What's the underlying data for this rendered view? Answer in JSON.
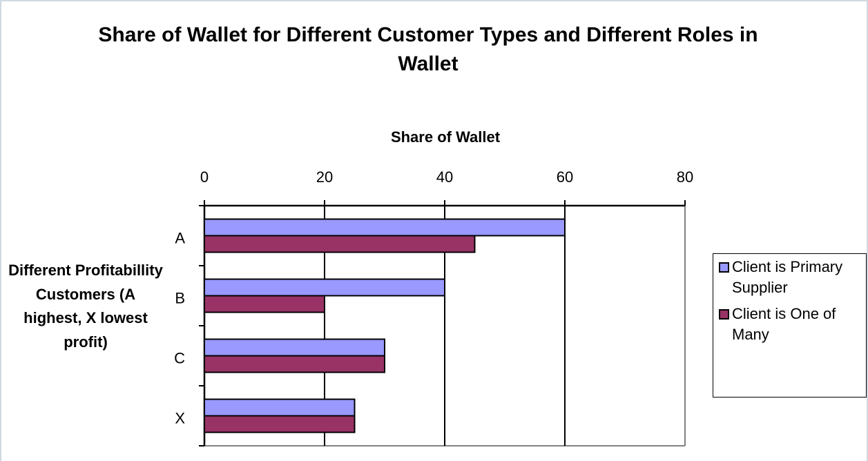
{
  "chart_data": {
    "type": "bar",
    "orientation": "horizontal",
    "title": "Share of Wallet for Different Customer Types and Different Roles in Wallet",
    "x_label": "Share of Wallet",
    "y_label": "Different Profitabillity Customers (A highest, X lowest profit)",
    "categories": [
      "A",
      "B",
      "C",
      "X"
    ],
    "series": [
      {
        "name": "Client is Primary Supplier",
        "color": "#9999ff",
        "values": [
          60,
          40,
          30,
          25
        ]
      },
      {
        "name": "Client is One of Many",
        "color": "#993366",
        "values": [
          45,
          20,
          30,
          25
        ]
      }
    ],
    "xlim": [
      0,
      80
    ],
    "xticks": [
      0,
      20,
      40,
      60,
      80
    ],
    "grid": true,
    "legend": "right"
  }
}
